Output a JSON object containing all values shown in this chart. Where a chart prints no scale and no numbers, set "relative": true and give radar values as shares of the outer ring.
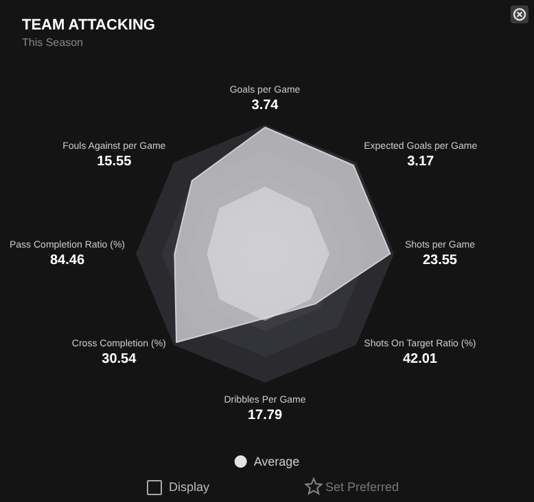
{
  "chart_data": {
    "type": "radar",
    "title": "TEAM ATTACKING",
    "subtitle": "This Season",
    "relative": true,
    "legend": "bottom",
    "marker": "none",
    "grid": false,
    "categories": [
      "Goals per Game",
      "Expected Goals per Game",
      "Shots per Game",
      "Shots On Target Ratio (%)",
      "Dribbles Per Game",
      "Cross Completion (%)",
      "Pass Completion Ratio (%)",
      "Fouls Against per Game"
    ],
    "series": [
      {
        "color": "#cfcfd4",
        "values": [
          0.98,
          0.97,
          0.97,
          0.55,
          0.5,
          0.97,
          0.7,
          0.8
        ]
      },
      {
        "name": "Average",
        "color": "#e4e4e8",
        "values": [
          0.52,
          0.5,
          0.5,
          0.5,
          0.52,
          0.5,
          0.45,
          0.5
        ]
      }
    ],
    "annotations": [
      "Display",
      "Set Preferred",
      {
        "text": "3.74",
        "x": "Goals per Game"
      },
      {
        "text": "3.17",
        "x": "Expected Goals per Game"
      },
      {
        "text": "23.55",
        "x": "Shots per Game"
      },
      {
        "text": "42.01",
        "x": "Shots On Target Ratio (%)"
      },
      {
        "text": "17.79",
        "x": "Dribbles Per Game"
      },
      {
        "text": "30.54",
        "x": "Cross Completion (%)"
      },
      {
        "text": "84.46",
        "x": "Pass Completion Ratio (%)"
      },
      {
        "text": "15.55",
        "x": "Fouls Against per Game"
      }
    ]
  }
}
